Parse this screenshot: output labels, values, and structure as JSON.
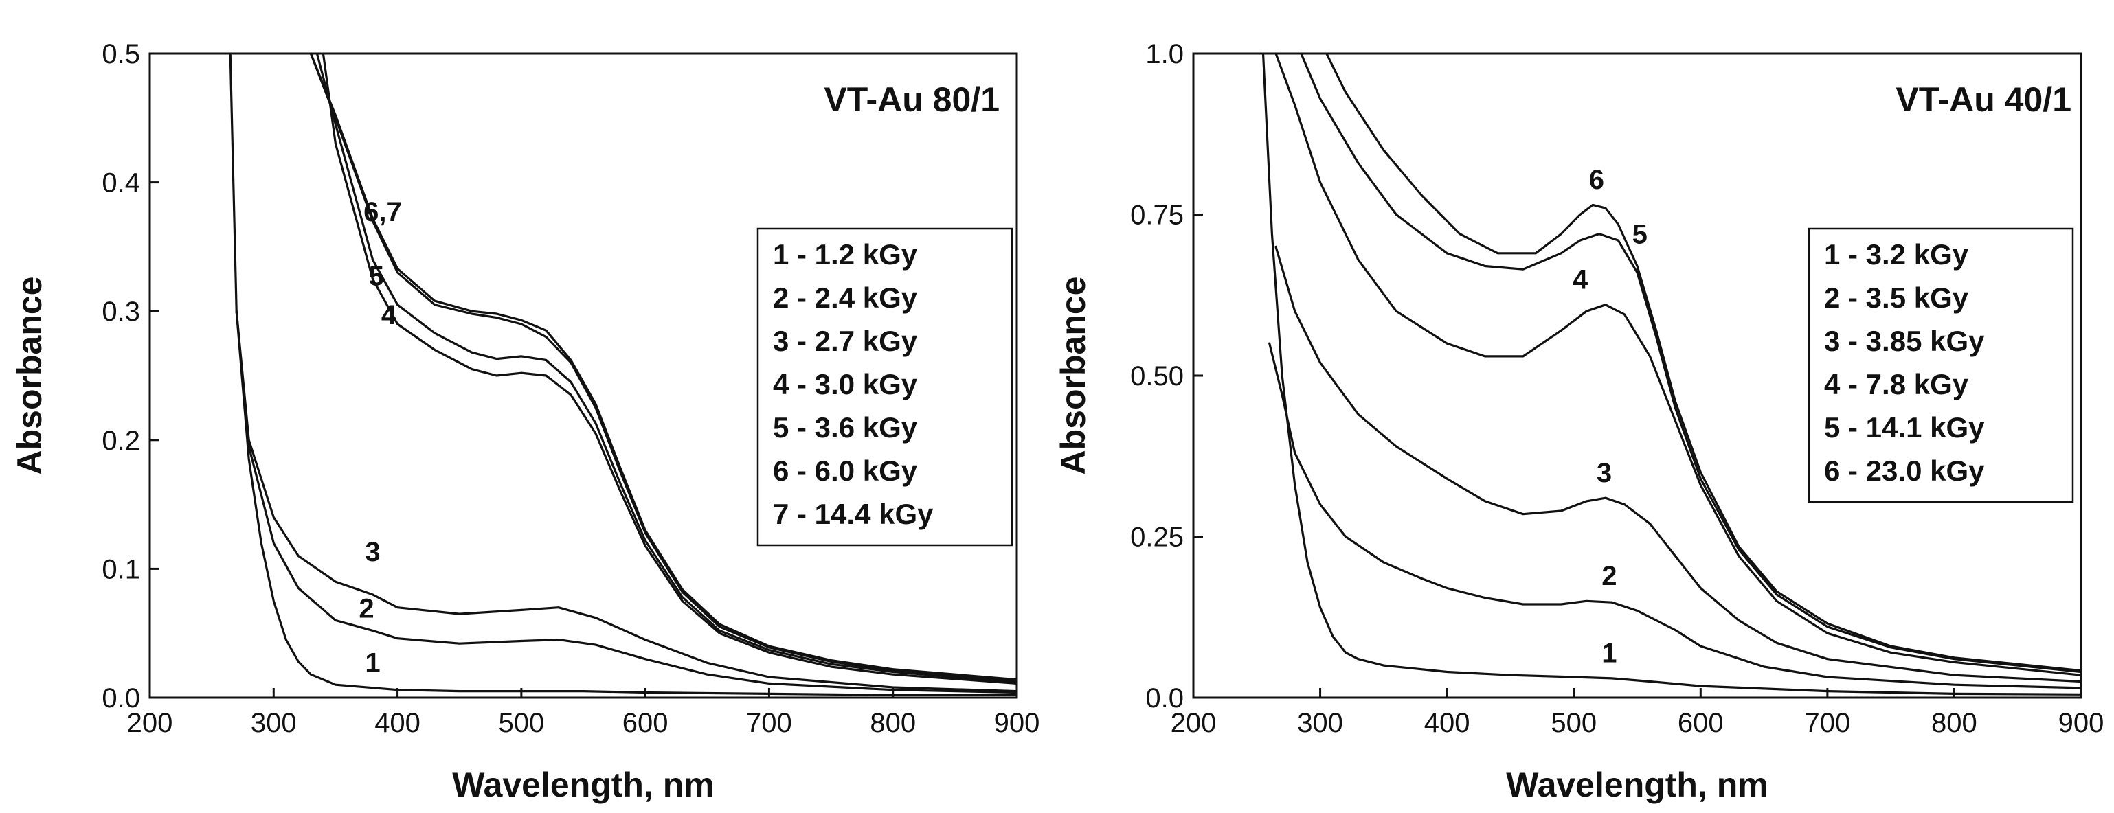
{
  "chart_data": [
    {
      "type": "line",
      "title": "VT-Au 80/1",
      "xlabel": "Wavelength, nm",
      "ylabel": "Absorbance",
      "xlim": [
        200,
        900
      ],
      "ylim": [
        0,
        0.5
      ],
      "xticks": [
        "200",
        "300",
        "400",
        "500",
        "600",
        "700",
        "800",
        "900"
      ],
      "yticks": [
        "0.0",
        "0.1",
        "0.2",
        "0.3",
        "0.4",
        "0.5"
      ],
      "legend": [
        "1 - 1.2 kGy",
        "2 - 2.4 kGy",
        "3 - 2.7 kGy",
        "4 - 3.0 kGy",
        "5 - 3.6 kGy",
        "6 - 6.0 kGy",
        "7 - 14.4 kGy"
      ],
      "curve_labels": [
        {
          "text": "1",
          "x": 380,
          "y": 0.02
        },
        {
          "text": "2",
          "x": 375,
          "y": 0.062
        },
        {
          "text": "3",
          "x": 380,
          "y": 0.106
        },
        {
          "text": "4",
          "x": 393,
          "y": 0.29
        },
        {
          "text": "5",
          "x": 383,
          "y": 0.32
        },
        {
          "text": "6,7",
          "x": 388,
          "y": 0.37
        }
      ],
      "series": [
        {
          "name": "1",
          "x": [
            265,
            270,
            280,
            290,
            300,
            310,
            320,
            330,
            350,
            400,
            450,
            500,
            550,
            600,
            700,
            800,
            900
          ],
          "y": [
            0.5,
            0.3,
            0.185,
            0.12,
            0.075,
            0.045,
            0.028,
            0.018,
            0.01,
            0.006,
            0.005,
            0.005,
            0.005,
            0.004,
            0.003,
            0.002,
            0.002
          ]
        },
        {
          "name": "2",
          "x": [
            270,
            280,
            300,
            320,
            350,
            380,
            400,
            450,
            500,
            530,
            560,
            600,
            650,
            700,
            800,
            900
          ],
          "y": [
            0.3,
            0.195,
            0.12,
            0.085,
            0.06,
            0.052,
            0.046,
            0.042,
            0.044,
            0.045,
            0.041,
            0.03,
            0.018,
            0.011,
            0.006,
            0.004
          ]
        },
        {
          "name": "3",
          "x": [
            270,
            280,
            300,
            320,
            350,
            380,
            400,
            450,
            500,
            530,
            560,
            600,
            650,
            700,
            800,
            900
          ],
          "y": [
            0.3,
            0.2,
            0.14,
            0.11,
            0.09,
            0.08,
            0.07,
            0.065,
            0.068,
            0.07,
            0.062,
            0.045,
            0.027,
            0.016,
            0.008,
            0.005
          ]
        },
        {
          "name": "4",
          "x": [
            340,
            350,
            380,
            400,
            430,
            460,
            480,
            500,
            520,
            540,
            560,
            580,
            600,
            630,
            660,
            700,
            750,
            800,
            900
          ],
          "y": [
            0.5,
            0.43,
            0.325,
            0.29,
            0.27,
            0.255,
            0.25,
            0.252,
            0.25,
            0.235,
            0.205,
            0.16,
            0.118,
            0.075,
            0.05,
            0.035,
            0.024,
            0.018,
            0.011
          ]
        },
        {
          "name": "5",
          "x": [
            335,
            350,
            380,
            400,
            430,
            460,
            480,
            500,
            520,
            540,
            560,
            580,
            600,
            630,
            660,
            700,
            750,
            800,
            900
          ],
          "y": [
            0.5,
            0.445,
            0.34,
            0.305,
            0.283,
            0.268,
            0.263,
            0.265,
            0.262,
            0.245,
            0.213,
            0.166,
            0.122,
            0.078,
            0.052,
            0.037,
            0.026,
            0.02,
            0.012
          ]
        },
        {
          "name": "6",
          "x": [
            330,
            350,
            380,
            400,
            430,
            460,
            480,
            500,
            520,
            540,
            560,
            580,
            600,
            630,
            660,
            700,
            750,
            800,
            900
          ],
          "y": [
            0.5,
            0.45,
            0.37,
            0.33,
            0.305,
            0.298,
            0.295,
            0.29,
            0.28,
            0.26,
            0.225,
            0.175,
            0.128,
            0.082,
            0.055,
            0.039,
            0.028,
            0.021,
            0.013
          ]
        },
        {
          "name": "7",
          "x": [
            330,
            350,
            380,
            400,
            430,
            460,
            480,
            500,
            520,
            540,
            560,
            580,
            600,
            630,
            660,
            700,
            750,
            800,
            900
          ],
          "y": [
            0.5,
            0.452,
            0.372,
            0.333,
            0.308,
            0.3,
            0.298,
            0.293,
            0.285,
            0.262,
            0.228,
            0.178,
            0.13,
            0.084,
            0.057,
            0.04,
            0.029,
            0.022,
            0.014
          ]
        }
      ]
    },
    {
      "type": "line",
      "title": "VT-Au 40/1",
      "xlabel": "Wavelength, nm",
      "ylabel": "Absorbance",
      "xlim": [
        200,
        900
      ],
      "ylim": [
        0,
        1.0
      ],
      "xticks": [
        "200",
        "300",
        "400",
        "500",
        "600",
        "700",
        "800",
        "900"
      ],
      "yticks": [
        "0.0",
        "0.25",
        "0.50",
        "0.75",
        "1.0"
      ],
      "legend": [
        "1 - 3.2 kGy",
        "2 - 3.5 kGy",
        "3 - 3.85 kGy",
        "4 - 7.8 kGy",
        "5 - 14.1 kGy",
        "6 - 23.0 kGy"
      ],
      "curve_labels": [
        {
          "text": "1",
          "x": 528,
          "y": 0.055
        },
        {
          "text": "2",
          "x": 528,
          "y": 0.175
        },
        {
          "text": "3",
          "x": 524,
          "y": 0.335
        },
        {
          "text": "4",
          "x": 505,
          "y": 0.635
        },
        {
          "text": "5",
          "x": 552,
          "y": 0.705
        },
        {
          "text": "6",
          "x": 518,
          "y": 0.79
        }
      ],
      "series": [
        {
          "name": "1",
          "x": [
            255,
            262,
            270,
            280,
            290,
            300,
            310,
            320,
            330,
            350,
            400,
            450,
            500,
            530,
            560,
            600,
            700,
            800,
            900
          ],
          "y": [
            1.0,
            0.72,
            0.5,
            0.33,
            0.21,
            0.14,
            0.095,
            0.07,
            0.06,
            0.05,
            0.04,
            0.035,
            0.032,
            0.03,
            0.025,
            0.018,
            0.01,
            0.006,
            0.005
          ]
        },
        {
          "name": "2",
          "x": [
            260,
            270,
            280,
            300,
            320,
            350,
            380,
            400,
            430,
            460,
            490,
            510,
            530,
            550,
            580,
            600,
            650,
            700,
            800,
            900
          ],
          "y": [
            0.55,
            0.47,
            0.38,
            0.3,
            0.25,
            0.21,
            0.185,
            0.17,
            0.155,
            0.145,
            0.145,
            0.15,
            0.148,
            0.135,
            0.105,
            0.08,
            0.048,
            0.032,
            0.02,
            0.015
          ]
        },
        {
          "name": "3",
          "x": [
            265,
            280,
            300,
            330,
            360,
            400,
            430,
            460,
            490,
            510,
            525,
            540,
            560,
            580,
            600,
            630,
            660,
            700,
            800,
            900
          ],
          "y": [
            0.7,
            0.6,
            0.52,
            0.44,
            0.39,
            0.34,
            0.305,
            0.285,
            0.29,
            0.305,
            0.31,
            0.3,
            0.27,
            0.22,
            0.17,
            0.12,
            0.085,
            0.06,
            0.035,
            0.025
          ]
        },
        {
          "name": "4",
          "x": [
            265,
            280,
            300,
            330,
            360,
            400,
            430,
            460,
            490,
            510,
            525,
            540,
            560,
            580,
            600,
            630,
            660,
            700,
            750,
            800,
            900
          ],
          "y": [
            1.0,
            0.92,
            0.8,
            0.68,
            0.6,
            0.55,
            0.53,
            0.53,
            0.57,
            0.6,
            0.61,
            0.595,
            0.53,
            0.43,
            0.33,
            0.22,
            0.15,
            0.1,
            0.07,
            0.055,
            0.035
          ]
        },
        {
          "name": "5",
          "x": [
            285,
            300,
            330,
            360,
            400,
            430,
            460,
            490,
            505,
            520,
            535,
            550,
            565,
            580,
            600,
            630,
            660,
            700,
            750,
            800,
            900
          ],
          "y": [
            1.0,
            0.93,
            0.83,
            0.75,
            0.69,
            0.67,
            0.665,
            0.69,
            0.71,
            0.72,
            0.71,
            0.66,
            0.56,
            0.45,
            0.34,
            0.23,
            0.16,
            0.11,
            0.078,
            0.06,
            0.04
          ]
        },
        {
          "name": "6",
          "x": [
            305,
            320,
            350,
            380,
            410,
            440,
            470,
            490,
            505,
            515,
            525,
            535,
            550,
            565,
            580,
            600,
            630,
            660,
            700,
            750,
            800,
            900
          ],
          "y": [
            1.0,
            0.94,
            0.85,
            0.78,
            0.72,
            0.69,
            0.69,
            0.72,
            0.75,
            0.765,
            0.76,
            0.735,
            0.67,
            0.57,
            0.46,
            0.35,
            0.235,
            0.165,
            0.115,
            0.08,
            0.062,
            0.042
          ]
        }
      ]
    }
  ]
}
